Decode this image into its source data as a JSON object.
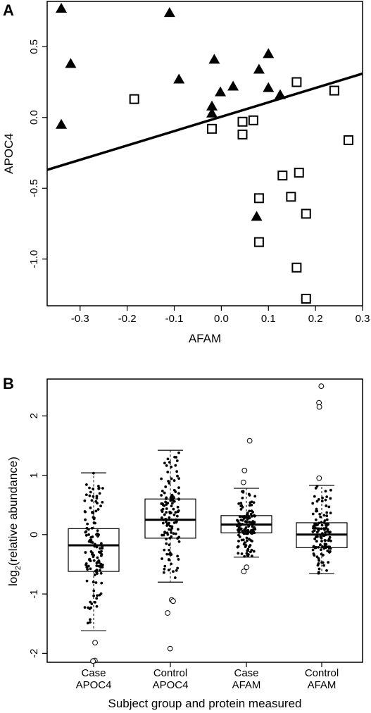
{
  "chart_data": [
    {
      "type": "scatter",
      "panel_label": "A",
      "xlabel": "AFAM",
      "ylabel": "APOC4",
      "xlim": [
        -0.37,
        0.3
      ],
      "ylim": [
        -1.33,
        0.82
      ],
      "x_ticks": [
        -0.3,
        -0.2,
        -0.1,
        0.0,
        0.1,
        0.2,
        0.3
      ],
      "x_tick_labels": [
        "-0.3",
        "-0.2",
        "-0.1",
        "0.0",
        "0.1",
        "0.2",
        "0.3"
      ],
      "y_ticks": [
        0.5,
        0.0,
        -0.5,
        -1.0
      ],
      "y_tick_labels": [
        "0.5",
        "0.0",
        "-0.5",
        "-1.0"
      ],
      "grid": false,
      "regression_line": {
        "x": [
          -0.37,
          0.3
        ],
        "y": [
          -0.37,
          0.31
        ]
      },
      "series": [
        {
          "marker": "filled-triangle",
          "color": "#000000",
          "points": [
            [
              -0.34,
              0.77
            ],
            [
              -0.32,
              0.38
            ],
            [
              -0.34,
              -0.05
            ],
            [
              -0.11,
              0.74
            ],
            [
              -0.09,
              0.27
            ],
            [
              -0.015,
              0.41
            ],
            [
              -0.02,
              0.08
            ],
            [
              -0.02,
              0.03
            ],
            [
              -0.002,
              0.18
            ],
            [
              0.025,
              0.22
            ],
            [
              0.08,
              0.34
            ],
            [
              0.1,
              0.45
            ],
            [
              0.1,
              0.21
            ],
            [
              0.125,
              0.16
            ],
            [
              0.075,
              -0.7
            ]
          ]
        },
        {
          "marker": "open-square",
          "color": "#000000",
          "points": [
            [
              -0.185,
              0.13
            ],
            [
              -0.02,
              -0.08
            ],
            [
              0.045,
              -0.03
            ],
            [
              0.068,
              -0.02
            ],
            [
              0.045,
              -0.12
            ],
            [
              0.16,
              0.25
            ],
            [
              0.24,
              0.19
            ],
            [
              0.27,
              -0.16
            ],
            [
              0.13,
              -0.41
            ],
            [
              0.165,
              -0.39
            ],
            [
              0.148,
              -0.56
            ],
            [
              0.08,
              -0.57
            ],
            [
              0.18,
              -0.68
            ],
            [
              0.08,
              -0.88
            ],
            [
              0.16,
              -1.06
            ],
            [
              0.18,
              -1.28
            ]
          ]
        }
      ]
    },
    {
      "type": "boxplot",
      "panel_label": "B",
      "xlabel": "Subject group and protein measured",
      "ylabel_main": "log",
      "ylabel_sub": "2",
      "ylabel_rest": "(relative abundance)",
      "ylim": [
        -2.15,
        2.62
      ],
      "y_ticks": [
        2,
        1,
        0,
        -1,
        -2
      ],
      "y_tick_labels": [
        "2",
        "1",
        "0",
        "-1",
        "-2"
      ],
      "categories": [
        [
          "Case",
          "APOC4"
        ],
        [
          "Control",
          "APOC4"
        ],
        [
          "Case",
          "AFAM"
        ],
        [
          "Control",
          "AFAM"
        ]
      ],
      "boxes": [
        {
          "whisker_low": -1.62,
          "q1": -0.62,
          "median": -0.18,
          "q3": 0.1,
          "whisker_high": 1.04,
          "outliers": [
            -1.82,
            -2.12,
            -2.13
          ]
        },
        {
          "whisker_low": -0.8,
          "q1": -0.06,
          "median": 0.25,
          "q3": 0.6,
          "whisker_high": 1.42,
          "outliers": [
            -1.1,
            -1.12,
            -1.32,
            -1.92
          ]
        },
        {
          "whisker_low": -0.38,
          "q1": 0.03,
          "median": 0.17,
          "q3": 0.32,
          "whisker_high": 0.78,
          "outliers": [
            1.58,
            1.08,
            0.88,
            -0.55,
            -0.62
          ]
        },
        {
          "whisker_low": -0.66,
          "q1": -0.22,
          "median": 0.0,
          "q3": 0.2,
          "whisker_high": 0.83,
          "outliers": [
            2.5,
            2.22,
            2.15,
            0.95
          ]
        }
      ],
      "points_per_group": 125
    }
  ]
}
